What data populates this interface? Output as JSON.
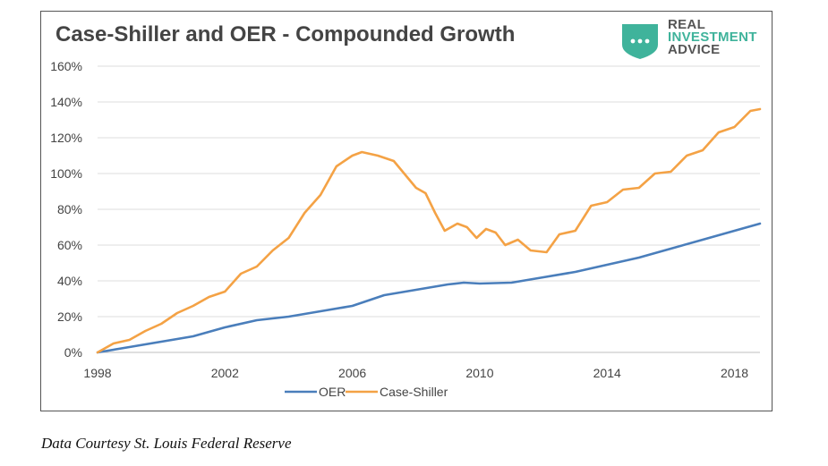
{
  "logo": {
    "lines": [
      "REAL",
      "INVESTMENT",
      "ADVICE"
    ],
    "colors": {
      "real": "#555555",
      "investment": "#3fb39b",
      "advice": "#555555",
      "shield": "#3fb39b"
    }
  },
  "caption": "Data Courtesy St. Louis Federal Reserve",
  "chart_data": {
    "type": "line",
    "title": "Case-Shiller and OER - Compounded Growth",
    "xlabel": "",
    "ylabel": "",
    "xlim": [
      1998,
      2018.8
    ],
    "ylim": [
      0,
      160
    ],
    "x_ticks": [
      1998,
      2002,
      2006,
      2010,
      2014,
      2018
    ],
    "x_tick_labels": [
      "1998",
      "2002",
      "2006",
      "2010",
      "2014",
      "2018"
    ],
    "y_ticks": [
      0,
      20,
      40,
      60,
      80,
      100,
      120,
      140,
      160
    ],
    "y_tick_labels": [
      "0%",
      "20%",
      "40%",
      "60%",
      "80%",
      "100%",
      "120%",
      "140%",
      "160%"
    ],
    "grid": true,
    "legend_position": "bottom",
    "series": [
      {
        "name": "OER",
        "color": "#4a7ebb",
        "x": [
          1998,
          1999,
          2000,
          2001,
          2002,
          2003,
          2004,
          2005,
          2006,
          2006.5,
          2007,
          2008,
          2009,
          2009.5,
          2010,
          2011,
          2012,
          2013,
          2014,
          2015,
          2016,
          2017,
          2018,
          2018.8
        ],
        "y": [
          0,
          3,
          6,
          9,
          14,
          18,
          20,
          23,
          26,
          29,
          32,
          35,
          38,
          39,
          38.5,
          39,
          42,
          45,
          49,
          53,
          58,
          63,
          68,
          72
        ]
      },
      {
        "name": "Case-Shiller",
        "color": "#f4a245",
        "x": [
          1998,
          1998.5,
          1999,
          1999.5,
          2000,
          2000.5,
          2001,
          2001.5,
          2002,
          2002.5,
          2003,
          2003.5,
          2004,
          2004.5,
          2005,
          2005.5,
          2006,
          2006.3,
          2006.8,
          2007.3,
          2008,
          2008.3,
          2008.6,
          2008.9,
          2009.3,
          2009.6,
          2009.9,
          2010.2,
          2010.5,
          2010.8,
          2011.2,
          2011.6,
          2012.1,
          2012.5,
          2013,
          2013.5,
          2014,
          2014.5,
          2015,
          2015.5,
          2016,
          2016.5,
          2017,
          2017.5,
          2018,
          2018.5,
          2018.8
        ],
        "y": [
          0,
          5,
          7,
          12,
          16,
          22,
          26,
          31,
          34,
          44,
          48,
          57,
          64,
          78,
          88,
          104,
          110,
          112,
          110,
          107,
          92,
          89,
          78,
          68,
          72,
          70,
          64,
          69,
          67,
          60,
          63,
          57,
          56,
          66,
          68,
          82,
          84,
          91,
          92,
          100,
          101,
          110,
          113,
          123,
          126,
          135,
          136
        ]
      }
    ]
  }
}
